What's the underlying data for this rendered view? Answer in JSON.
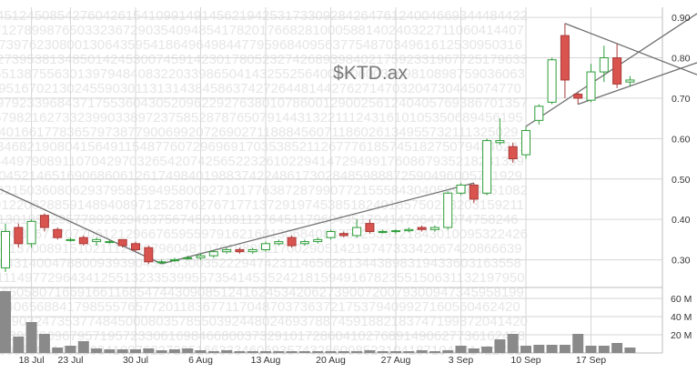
{
  "colors": {
    "up_fill": "#ffffff",
    "up_stroke": "#2e9e3a",
    "down_fill": "#d9534f",
    "down_stroke": "#a83a37",
    "volume": "#8a8a8a",
    "trendline": "#707070",
    "grid": "#d6d6d6",
    "background_digits": "#e6e6e6"
  },
  "chart_data": {
    "type": "candlestick",
    "title": "$KTD.ax",
    "price_axis": {
      "ylim": [
        0.245,
        0.925
      ],
      "ticks": [
        "0.90",
        "0.80",
        "0.70",
        "0.60",
        "0.50",
        "0.40",
        "0.30"
      ],
      "side": "right"
    },
    "volume_axis": {
      "ylim": [
        0,
        70
      ],
      "unit": "M",
      "ticks": [
        "60 M",
        "40 M",
        "20 M"
      ],
      "side": "right"
    },
    "x_tick_labels": [
      "18 Jul",
      "23 Jul",
      "30 Jul",
      "6 Aug",
      "13 Aug",
      "20 Aug",
      "27 Aug",
      "3 Sep",
      "10 Sep",
      "17 Sep"
    ],
    "x_tick_index": [
      2,
      5,
      10,
      15,
      20,
      25,
      30,
      35,
      40,
      45
    ],
    "candles": [
      {
        "o": 0.28,
        "h": 0.39,
        "l": 0.27,
        "c": 0.37
      },
      {
        "o": 0.38,
        "h": 0.39,
        "l": 0.33,
        "c": 0.34
      },
      {
        "o": 0.34,
        "h": 0.4,
        "l": 0.33,
        "c": 0.395
      },
      {
        "o": 0.41,
        "h": 0.415,
        "l": 0.37,
        "c": 0.38
      },
      {
        "o": 0.375,
        "h": 0.38,
        "l": 0.35,
        "c": 0.355
      },
      {
        "o": 0.35,
        "h": 0.355,
        "l": 0.345,
        "c": 0.35
      },
      {
        "o": 0.355,
        "h": 0.36,
        "l": 0.335,
        "c": 0.34
      },
      {
        "o": 0.345,
        "h": 0.355,
        "l": 0.335,
        "c": 0.35
      },
      {
        "o": 0.345,
        "h": 0.35,
        "l": 0.34,
        "c": 0.345
      },
      {
        "o": 0.35,
        "h": 0.35,
        "l": 0.33,
        "c": 0.335
      },
      {
        "o": 0.34,
        "h": 0.345,
        "l": 0.32,
        "c": 0.325
      },
      {
        "o": 0.33,
        "h": 0.335,
        "l": 0.29,
        "c": 0.295
      },
      {
        "o": 0.295,
        "h": 0.3,
        "l": 0.29,
        "c": 0.295
      },
      {
        "o": 0.3,
        "h": 0.305,
        "l": 0.295,
        "c": 0.3
      },
      {
        "o": 0.305,
        "h": 0.31,
        "l": 0.3,
        "c": 0.305
      },
      {
        "o": 0.305,
        "h": 0.315,
        "l": 0.3,
        "c": 0.31
      },
      {
        "o": 0.31,
        "h": 0.325,
        "l": 0.305,
        "c": 0.32
      },
      {
        "o": 0.32,
        "h": 0.33,
        "l": 0.315,
        "c": 0.325
      },
      {
        "o": 0.325,
        "h": 0.33,
        "l": 0.315,
        "c": 0.32
      },
      {
        "o": 0.32,
        "h": 0.33,
        "l": 0.315,
        "c": 0.325
      },
      {
        "o": 0.325,
        "h": 0.345,
        "l": 0.32,
        "c": 0.34
      },
      {
        "o": 0.34,
        "h": 0.35,
        "l": 0.335,
        "c": 0.345
      },
      {
        "o": 0.355,
        "h": 0.36,
        "l": 0.33,
        "c": 0.335
      },
      {
        "o": 0.34,
        "h": 0.35,
        "l": 0.335,
        "c": 0.345
      },
      {
        "o": 0.345,
        "h": 0.355,
        "l": 0.34,
        "c": 0.35
      },
      {
        "o": 0.355,
        "h": 0.375,
        "l": 0.35,
        "c": 0.37
      },
      {
        "o": 0.365,
        "h": 0.37,
        "l": 0.355,
        "c": 0.36
      },
      {
        "o": 0.36,
        "h": 0.4,
        "l": 0.355,
        "c": 0.38
      },
      {
        "o": 0.39,
        "h": 0.4,
        "l": 0.365,
        "c": 0.37
      },
      {
        "o": 0.37,
        "h": 0.375,
        "l": 0.365,
        "c": 0.37
      },
      {
        "o": 0.37,
        "h": 0.375,
        "l": 0.365,
        "c": 0.372
      },
      {
        "o": 0.372,
        "h": 0.38,
        "l": 0.368,
        "c": 0.375
      },
      {
        "o": 0.38,
        "h": 0.385,
        "l": 0.37,
        "c": 0.375
      },
      {
        "o": 0.375,
        "h": 0.385,
        "l": 0.37,
        "c": 0.38
      },
      {
        "o": 0.38,
        "h": 0.47,
        "l": 0.375,
        "c": 0.465
      },
      {
        "o": 0.465,
        "h": 0.49,
        "l": 0.46,
        "c": 0.485
      },
      {
        "o": 0.485,
        "h": 0.49,
        "l": 0.44,
        "c": 0.45
      },
      {
        "o": 0.465,
        "h": 0.6,
        "l": 0.46,
        "c": 0.595
      },
      {
        "o": 0.59,
        "h": 0.65,
        "l": 0.585,
        "c": 0.595
      },
      {
        "o": 0.58,
        "h": 0.59,
        "l": 0.54,
        "c": 0.55
      },
      {
        "o": 0.56,
        "h": 0.63,
        "l": 0.55,
        "c": 0.62
      },
      {
        "o": 0.645,
        "h": 0.685,
        "l": 0.635,
        "c": 0.68
      },
      {
        "o": 0.69,
        "h": 0.8,
        "l": 0.685,
        "c": 0.795
      },
      {
        "o": 0.855,
        "h": 0.885,
        "l": 0.7,
        "c": 0.745
      },
      {
        "o": 0.71,
        "h": 0.715,
        "l": 0.685,
        "c": 0.7
      },
      {
        "o": 0.695,
        "h": 0.785,
        "l": 0.69,
        "c": 0.765
      },
      {
        "o": 0.765,
        "h": 0.83,
        "l": 0.74,
        "c": 0.8
      },
      {
        "o": 0.8,
        "h": 0.835,
        "l": 0.725,
        "c": 0.735
      },
      {
        "o": 0.74,
        "h": 0.755,
        "l": 0.73,
        "c": 0.745
      }
    ],
    "volume": [
      68,
      18,
      34,
      21,
      6,
      8,
      13,
      5,
      4,
      4,
      4,
      5,
      3,
      4,
      5,
      3,
      2,
      3,
      2,
      2,
      2,
      2,
      2,
      2,
      2,
      2,
      2,
      2,
      3,
      2,
      2,
      2,
      3,
      2,
      3,
      8,
      5,
      7,
      15,
      21,
      8,
      9,
      9,
      9,
      21,
      8,
      8,
      11,
      6
    ]
  }
}
